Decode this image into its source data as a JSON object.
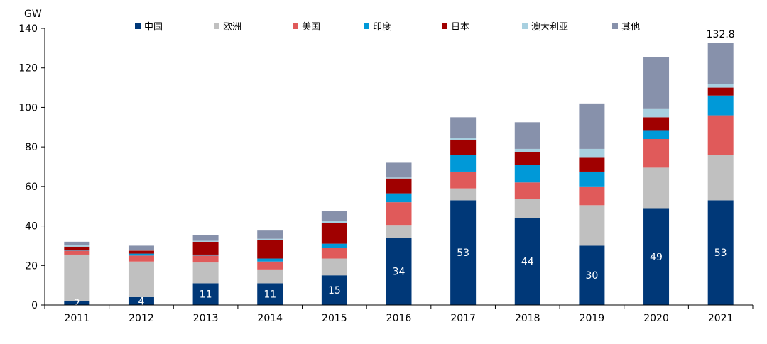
{
  "chart_data": {
    "type": "bar",
    "stacked": true,
    "unit_label": "GW",
    "categories": [
      "2011",
      "2012",
      "2013",
      "2014",
      "2015",
      "2016",
      "2017",
      "2018",
      "2019",
      "2020",
      "2021"
    ],
    "ylim": [
      0,
      140
    ],
    "yticks": [
      0,
      20,
      40,
      60,
      80,
      100,
      120,
      140
    ],
    "legend_position": "top",
    "series": [
      {
        "name": "中国",
        "color": "#003878",
        "values": [
          2,
          4,
          11,
          11,
          15,
          34,
          53,
          44,
          30,
          49,
          53
        ]
      },
      {
        "name": "欧洲",
        "color": "#c0c0c0",
        "values": [
          23.5,
          18,
          10.5,
          7,
          8.5,
          6.5,
          6,
          9.5,
          20.5,
          20.5,
          23
        ]
      },
      {
        "name": "美国",
        "color": "#e05a5a",
        "values": [
          2,
          3,
          3.5,
          4,
          5.5,
          11.5,
          8.5,
          8.5,
          9.5,
          14.5,
          20
        ]
      },
      {
        "name": "印度",
        "color": "#0099d8",
        "values": [
          0.5,
          1,
          0.5,
          1.5,
          2,
          4.5,
          8.5,
          9,
          7.5,
          4.5,
          10
        ]
      },
      {
        "name": "日本",
        "color": "#a00000",
        "values": [
          1.5,
          1.5,
          6.5,
          9.5,
          10.5,
          7.5,
          7.5,
          6.5,
          7,
          6.5,
          4
        ]
      },
      {
        "name": "澳大利亚",
        "color": "#a8d0e0",
        "values": [
          1,
          0.5,
          0.5,
          0.5,
          1,
          0.5,
          1,
          1.5,
          4.5,
          4.5,
          2
        ]
      },
      {
        "name": "其他",
        "color": "#8791ab",
        "values": [
          1.5,
          2,
          3,
          4.5,
          5,
          7.5,
          10.5,
          13.5,
          23,
          26,
          20.8
        ]
      }
    ],
    "segment_labels": [
      "2",
      "4",
      "11",
      "11",
      "15",
      "34",
      "53",
      "44",
      "30",
      "49",
      "53"
    ],
    "total_labels": [
      "",
      "",
      "",
      "",
      "",
      "",
      "",
      "",
      "",
      "",
      "132.8"
    ]
  }
}
